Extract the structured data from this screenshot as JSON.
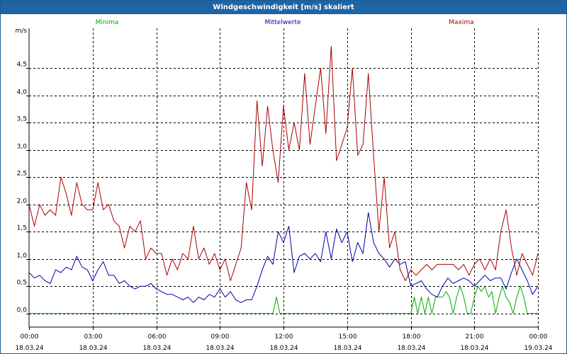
{
  "window": {
    "title": "Windgeschwindigkeit [m/s] skaliert"
  },
  "chart_data": {
    "type": "line",
    "title": "Windgeschwindigkeit [m/s] skaliert",
    "ylabel": "m/s",
    "xlabel": "",
    "ylim": [
      -0.25,
      5.15
    ],
    "xlim": [
      0,
      24
    ],
    "grid": true,
    "legend_placement": "top",
    "y_ticks": [
      {
        "value": 0.0,
        "label": "0,0"
      },
      {
        "value": 0.5,
        "label": "0,5"
      },
      {
        "value": 1.0,
        "label": "1,0"
      },
      {
        "value": 1.5,
        "label": "1,5"
      },
      {
        "value": 2.0,
        "label": "2,0"
      },
      {
        "value": 2.5,
        "label": "2,5"
      },
      {
        "value": 3.0,
        "label": "3,0"
      },
      {
        "value": 3.5,
        "label": "3,5"
      },
      {
        "value": 4.0,
        "label": "4,0"
      },
      {
        "value": 4.5,
        "label": "4,5"
      }
    ],
    "x_ticks": [
      {
        "hour": 0,
        "time": "00:00",
        "date": "18.03.24"
      },
      {
        "hour": 3,
        "time": "03:00",
        "date": "18.03.24"
      },
      {
        "hour": 6,
        "time": "06:00",
        "date": "18.03.24"
      },
      {
        "hour": 9,
        "time": "09:00",
        "date": "18.03.24"
      },
      {
        "hour": 12,
        "time": "12:00",
        "date": "18.03.24"
      },
      {
        "hour": 15,
        "time": "15:00",
        "date": "18.03.24"
      },
      {
        "hour": 18,
        "time": "18:00",
        "date": "18.03.24"
      },
      {
        "hour": 21,
        "time": "21:00",
        "date": "18.03.24"
      },
      {
        "hour": 24,
        "time": "00:00",
        "date": "19.03.24"
      }
    ],
    "series": [
      {
        "name": "Minima",
        "color": "#00aa00",
        "x": [
          0,
          11.5,
          11.67,
          11.83,
          18.0,
          18.17,
          18.33,
          18.5,
          18.67,
          18.83,
          19.0,
          19.17,
          19.33,
          19.5,
          19.67,
          19.83,
          20.0,
          20.17,
          20.33,
          20.5,
          20.67,
          20.83,
          21.0,
          21.17,
          21.33,
          21.5,
          21.67,
          21.83,
          22.0,
          22.17,
          22.33,
          22.5,
          22.67,
          22.83,
          23.0,
          23.17,
          23.33,
          23.5,
          23.67,
          23.83,
          24.0
        ],
        "values": [
          0,
          0,
          0.3,
          0,
          0,
          0.3,
          0,
          0.3,
          0,
          0.3,
          0,
          0.3,
          0.3,
          0.3,
          0.4,
          0.3,
          0,
          0.3,
          0.5,
          0.3,
          0,
          0,
          0.3,
          0.5,
          0.4,
          0.5,
          0.3,
          0.4,
          0,
          0.3,
          0.5,
          0.3,
          0.2,
          0,
          0.3,
          0.5,
          0.3,
          0,
          0,
          0,
          0
        ]
      },
      {
        "name": "Mittelwerte",
        "color": "#0000aa",
        "x": [
          0,
          0.25,
          0.5,
          0.75,
          1.0,
          1.25,
          1.5,
          1.75,
          2.0,
          2.25,
          2.5,
          2.75,
          3.0,
          3.25,
          3.5,
          3.75,
          4.0,
          4.25,
          4.5,
          4.75,
          5.0,
          5.25,
          5.5,
          5.75,
          6.0,
          6.25,
          6.5,
          6.75,
          7.0,
          7.25,
          7.5,
          7.75,
          8.0,
          8.25,
          8.5,
          8.75,
          9.0,
          9.25,
          9.5,
          9.75,
          10.0,
          10.25,
          10.5,
          10.75,
          11.0,
          11.25,
          11.5,
          11.75,
          12.0,
          12.25,
          12.5,
          12.75,
          13.0,
          13.25,
          13.5,
          13.75,
          14.0,
          14.25,
          14.5,
          14.75,
          15.0,
          15.25,
          15.5,
          15.75,
          16.0,
          16.25,
          16.5,
          16.75,
          17.0,
          17.25,
          17.5,
          17.75,
          18.0,
          18.25,
          18.5,
          18.75,
          19.0,
          19.25,
          19.5,
          19.75,
          20.0,
          20.25,
          20.5,
          20.75,
          21.0,
          21.25,
          21.5,
          21.75,
          22.0,
          22.25,
          22.5,
          22.75,
          23.0,
          23.25,
          23.5,
          23.75,
          24.0
        ],
        "values": [
          0.75,
          0.65,
          0.7,
          0.6,
          0.55,
          0.8,
          0.75,
          0.85,
          0.8,
          1.05,
          0.85,
          0.8,
          0.6,
          0.8,
          0.95,
          0.7,
          0.7,
          0.55,
          0.6,
          0.5,
          0.45,
          0.5,
          0.5,
          0.55,
          0.45,
          0.4,
          0.35,
          0.35,
          0.3,
          0.25,
          0.3,
          0.2,
          0.3,
          0.25,
          0.35,
          0.3,
          0.45,
          0.3,
          0.4,
          0.25,
          0.2,
          0.25,
          0.25,
          0.5,
          0.8,
          1.05,
          0.9,
          1.5,
          1.3,
          1.6,
          0.75,
          1.05,
          1.1,
          1.0,
          1.1,
          0.95,
          1.5,
          1.0,
          1.55,
          1.3,
          1.5,
          0.95,
          1.3,
          1.1,
          1.85,
          1.3,
          1.1,
          1.0,
          0.85,
          1.0,
          0.9,
          0.95,
          0.5,
          0.55,
          0.6,
          0.45,
          0.35,
          0.3,
          0.5,
          0.65,
          0.55,
          0.6,
          0.65,
          0.6,
          0.5,
          0.6,
          0.7,
          0.6,
          0.65,
          0.65,
          0.45,
          0.75,
          1.0,
          0.8,
          0.6,
          0.35,
          0.5
        ]
      },
      {
        "name": "Maxima",
        "color": "#aa0000",
        "x": [
          0,
          0.25,
          0.5,
          0.75,
          1.0,
          1.25,
          1.5,
          1.75,
          2.0,
          2.25,
          2.5,
          2.75,
          3.0,
          3.25,
          3.5,
          3.75,
          4.0,
          4.25,
          4.5,
          4.75,
          5.0,
          5.25,
          5.5,
          5.75,
          6.0,
          6.25,
          6.5,
          6.75,
          7.0,
          7.25,
          7.5,
          7.75,
          8.0,
          8.25,
          8.5,
          8.75,
          9.0,
          9.25,
          9.5,
          9.75,
          10.0,
          10.25,
          10.5,
          10.75,
          11.0,
          11.25,
          11.5,
          11.75,
          12.0,
          12.25,
          12.5,
          12.75,
          13.0,
          13.25,
          13.5,
          13.75,
          14.0,
          14.25,
          14.5,
          14.75,
          15.0,
          15.25,
          15.5,
          15.75,
          16.0,
          16.25,
          16.5,
          16.75,
          17.0,
          17.25,
          17.5,
          17.75,
          18.0,
          18.25,
          18.5,
          18.75,
          19.0,
          19.25,
          19.5,
          19.75,
          20.0,
          20.25,
          20.5,
          20.75,
          21.0,
          21.25,
          21.5,
          21.75,
          22.0,
          22.25,
          22.5,
          22.75,
          23.0,
          23.25,
          23.5,
          23.75,
          24.0
        ],
        "values": [
          2.0,
          1.6,
          2.0,
          1.8,
          1.9,
          1.8,
          2.5,
          2.2,
          1.8,
          2.4,
          2.0,
          1.9,
          1.9,
          2.4,
          1.9,
          2.0,
          1.7,
          1.6,
          1.2,
          1.6,
          1.5,
          1.7,
          1.0,
          1.2,
          1.1,
          1.1,
          0.7,
          1.0,
          0.8,
          1.1,
          1.0,
          1.6,
          1.0,
          1.2,
          0.9,
          1.1,
          0.8,
          1.0,
          0.6,
          0.9,
          1.2,
          2.4,
          1.9,
          3.9,
          2.7,
          3.8,
          3.0,
          2.4,
          3.8,
          3.0,
          3.5,
          3.0,
          4.4,
          3.1,
          3.8,
          4.5,
          3.3,
          4.9,
          2.8,
          3.1,
          3.4,
          4.5,
          2.9,
          3.1,
          4.4,
          2.9,
          1.5,
          2.5,
          1.2,
          1.5,
          0.8,
          0.6,
          0.8,
          0.7,
          0.8,
          0.9,
          0.8,
          0.9,
          0.9,
          0.9,
          0.9,
          0.8,
          0.9,
          0.7,
          0.9,
          1.0,
          0.8,
          1.0,
          0.8,
          1.5,
          1.9,
          1.2,
          0.7,
          1.1,
          0.9,
          0.7,
          1.1
        ]
      }
    ]
  }
}
